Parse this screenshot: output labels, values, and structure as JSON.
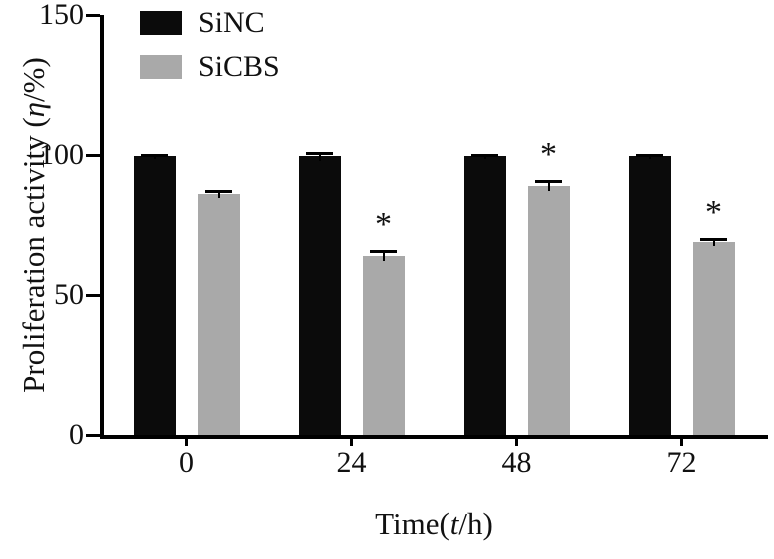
{
  "figure": {
    "background": "#ffffff",
    "axis_color": "#000000"
  },
  "labels": {
    "ylabel_prefix": "Proliferation activity (",
    "ylabel_italic": "η",
    "ylabel_suffix": "/%)",
    "xlabel_prefix": "Time(",
    "xlabel_italic": "t",
    "xlabel_suffix": "/h)"
  },
  "chart_data": {
    "type": "bar",
    "title": "",
    "xlabel": "Time(t/h)",
    "ylabel": "Proliferation activity (η/%)",
    "categories": [
      "0",
      "24",
      "48",
      "72"
    ],
    "series": [
      {
        "name": "SiNC",
        "color": "#0b0b0b",
        "values": [
          99.5,
          99.5,
          99.5,
          99.5
        ],
        "errors": [
          1,
          1.5,
          1,
          1
        ],
        "annotations": [
          "",
          "",
          "",
          ""
        ]
      },
      {
        "name": "SiCBS",
        "color": "#a9a9a9",
        "values": [
          86,
          64,
          89,
          69
        ],
        "errors": [
          1.5,
          2,
          2,
          1.5
        ],
        "annotations": [
          "",
          "*",
          "*",
          "*"
        ]
      }
    ],
    "ylim": [
      0,
      150
    ],
    "yticks": [
      0,
      50,
      100,
      150
    ],
    "legend_position": "top-left",
    "grid": false
  }
}
